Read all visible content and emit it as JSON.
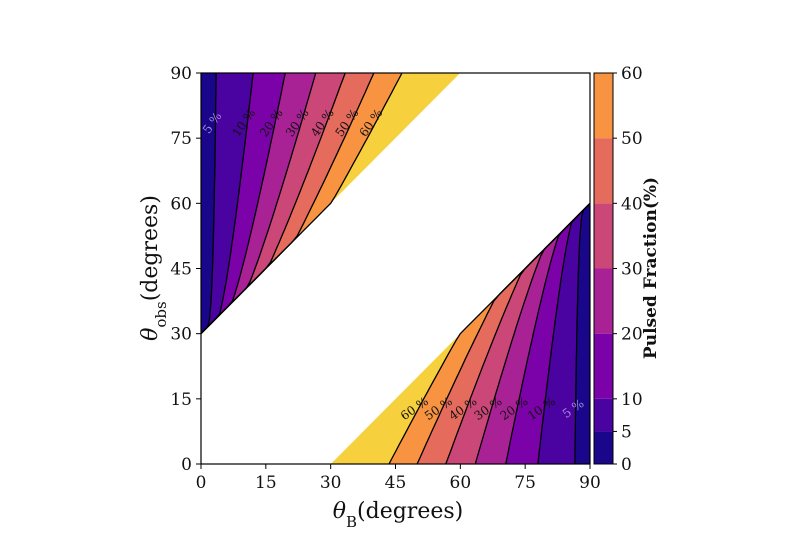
{
  "chart_data": {
    "type": "heatmap",
    "subtype": "filled-contour",
    "colormap": "plasma",
    "xlabel": "θB(degrees)",
    "ylabel": "θobs(degrees)",
    "xlim": [
      0,
      90
    ],
    "ylim": [
      0,
      90
    ],
    "xticks": [
      "0",
      "15",
      "30",
      "45",
      "60",
      "75",
      "90"
    ],
    "yticks": [
      "0",
      "15",
      "30",
      "45",
      "60",
      "75",
      "90"
    ],
    "colorbar": {
      "label": "Pulsed Fraction(%)",
      "levels": [
        0,
        5,
        10,
        20,
        30,
        40,
        50,
        60
      ],
      "ticks": [
        "0",
        "5",
        "10",
        "20",
        "30",
        "40",
        "50",
        "60"
      ],
      "colors": [
        "#1a068a",
        "#4a02a0",
        "#7a02a8",
        "#a82296",
        "#cb4778",
        "#e56b5d",
        "#f89441",
        "#f7d13d"
      ]
    },
    "regions": [
      {
        "name": "upper-left",
        "masked_boundary": "θobs = θB + 30"
      },
      {
        "name": "lower-right",
        "masked_boundary": "θobs = θB − 30"
      }
    ],
    "contour_labels": {
      "upper": [
        "5 %",
        "10 %",
        "20 %",
        "30 %",
        "40 %",
        "50 %",
        "60 %"
      ],
      "lower": [
        "5 %",
        "10 %",
        "20 %",
        "30 %",
        "40 %",
        "50 %",
        "60 %"
      ]
    },
    "contour_level_values": [
      5,
      10,
      20,
      30,
      40,
      50,
      60
    ],
    "grid": false
  }
}
